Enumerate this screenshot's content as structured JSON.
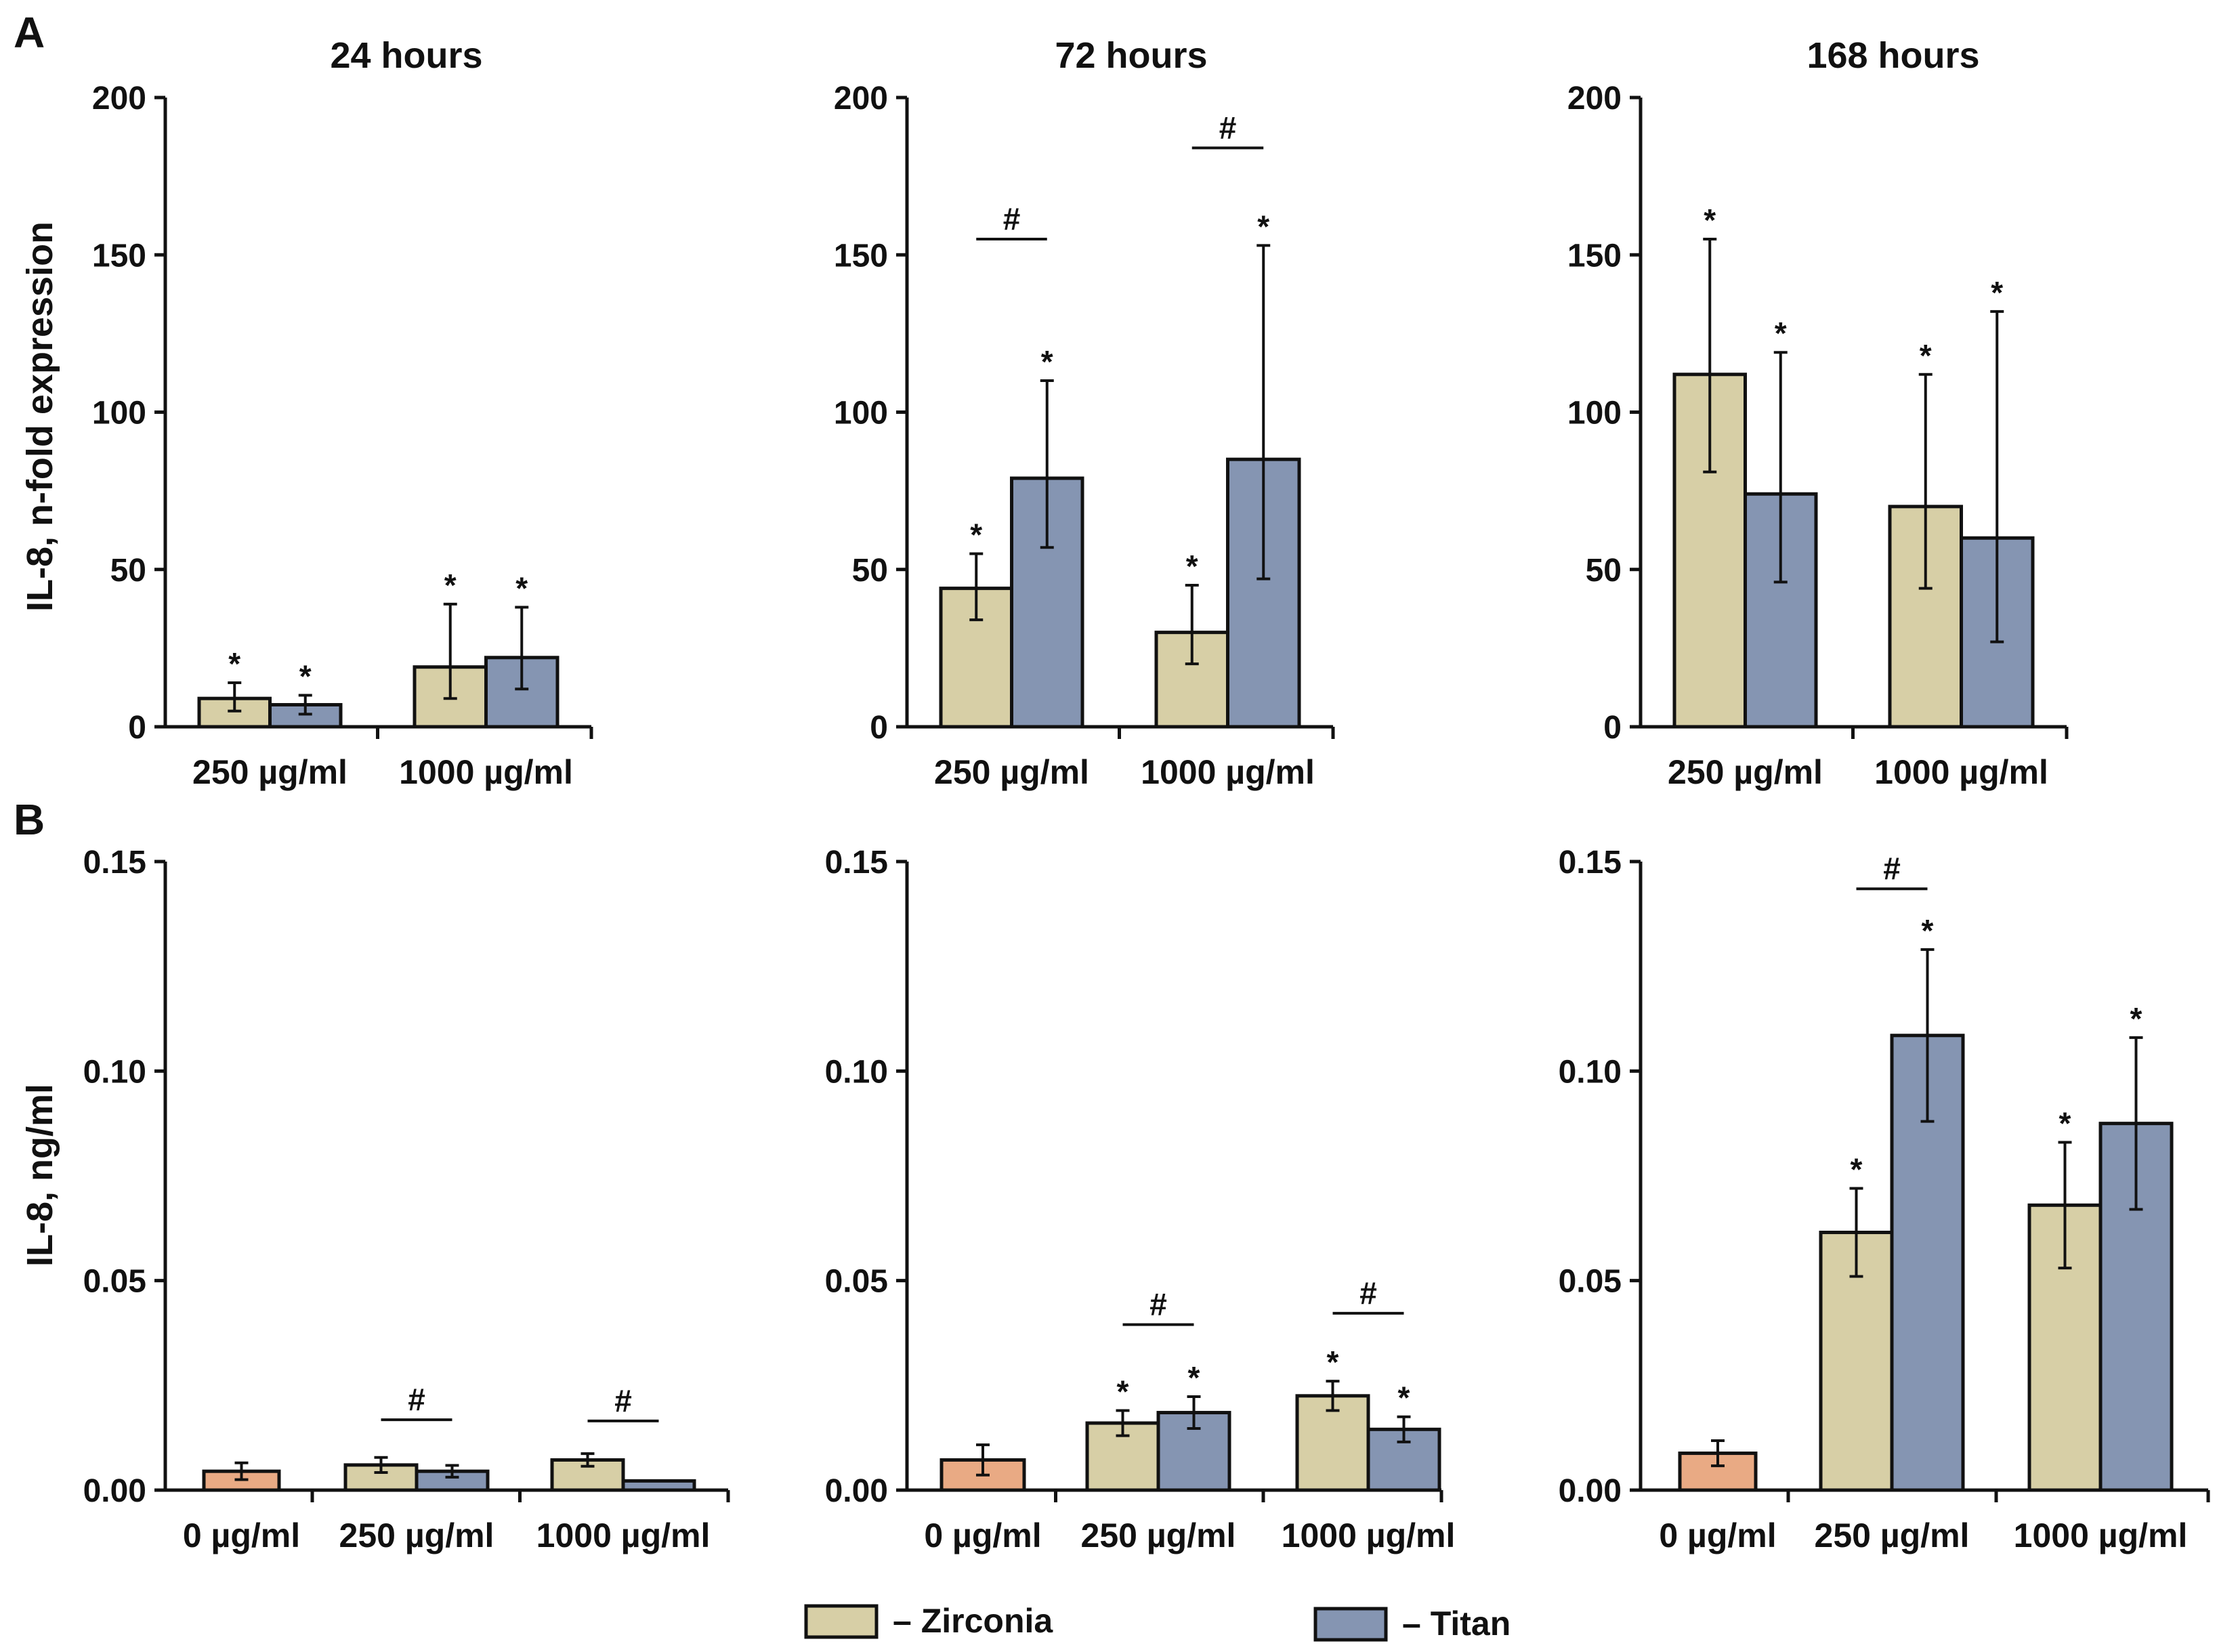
{
  "panels": {
    "a": "A",
    "b": "B"
  },
  "legend": {
    "zircon": "– Zirconia",
    "titan": "– Titan"
  },
  "colors": {
    "zirconia": "#d7cfa6",
    "titan": "#8595b2",
    "control": "#e9aa84",
    "stroke": "#111111"
  },
  "chart_data": [
    {
      "type": "bar",
      "row": "A",
      "title": "24 hours",
      "ylabel": "IL-8, n-fold expression",
      "ylim": [
        0,
        200
      ],
      "yticks": [
        0,
        50,
        100,
        150,
        200
      ],
      "ytick_labels": [
        "0",
        "50",
        "100",
        "150",
        "200"
      ],
      "categories": [
        "250 µg/ml",
        "1000 µg/ml"
      ],
      "series": [
        {
          "name": "Zirconia",
          "values": [
            9,
            19
          ],
          "err_low": [
            4,
            10
          ],
          "err_high": [
            5,
            20
          ],
          "marks": [
            "*",
            "*"
          ]
        },
        {
          "name": "Titan",
          "values": [
            7,
            22
          ],
          "err_low": [
            3,
            10
          ],
          "err_high": [
            3,
            16
          ],
          "marks": [
            "*",
            "*"
          ]
        }
      ],
      "brackets": []
    },
    {
      "type": "bar",
      "row": "A",
      "title": "72 hours",
      "ylabel": "",
      "ylim": [
        0,
        200
      ],
      "yticks": [
        0,
        50,
        100,
        150,
        200
      ],
      "ytick_labels": [
        "0",
        "50",
        "100",
        "150",
        "200"
      ],
      "categories": [
        "250 µg/ml",
        "1000 µg/ml"
      ],
      "series": [
        {
          "name": "Zirconia",
          "values": [
            44,
            30
          ],
          "err_low": [
            10,
            10
          ],
          "err_high": [
            11,
            15
          ],
          "marks": [
            "*",
            "*"
          ]
        },
        {
          "name": "Titan",
          "values": [
            79,
            85
          ],
          "err_low": [
            22,
            38
          ],
          "err_high": [
            31,
            68
          ],
          "marks": [
            "*",
            "*"
          ]
        }
      ],
      "brackets": [
        {
          "category": 0,
          "y": 155,
          "label": "#"
        },
        {
          "category": 1,
          "y": 184,
          "label": "#"
        }
      ]
    },
    {
      "type": "bar",
      "row": "A",
      "title": "168 hours",
      "ylabel": "",
      "ylim": [
        0,
        200
      ],
      "yticks": [
        0,
        50,
        100,
        150,
        200
      ],
      "ytick_labels": [
        "0",
        "50",
        "100",
        "150",
        "200"
      ],
      "categories": [
        "250 µg/ml",
        "1000 µg/ml"
      ],
      "series": [
        {
          "name": "Zirconia",
          "values": [
            112,
            70
          ],
          "err_low": [
            31,
            26
          ],
          "err_high": [
            43,
            42
          ],
          "marks": [
            "*",
            "*"
          ]
        },
        {
          "name": "Titan",
          "values": [
            74,
            60
          ],
          "err_low": [
            28,
            33
          ],
          "err_high": [
            45,
            72
          ],
          "marks": [
            "*",
            "*"
          ]
        }
      ],
      "brackets": []
    },
    {
      "type": "bar",
      "row": "B",
      "title": "",
      "ylabel": "IL-8, ng/ml",
      "ylim": [
        0,
        0.15
      ],
      "yticks": [
        0,
        0.05,
        0.1,
        0.15
      ],
      "ytick_labels": [
        "0.00",
        "0.05",
        "0.10",
        "0.15"
      ],
      "categories": [
        "0 µg/ml",
        "250 µg/ml",
        "1000 µg/ml"
      ],
      "control": {
        "value": 0.0045,
        "err_low": 0.002,
        "err_high": 0.002
      },
      "series": [
        {
          "name": "Zirconia",
          "values": [
            null,
            0.006,
            0.0072
          ],
          "err_low": [
            null,
            0.0018,
            0.0015
          ],
          "err_high": [
            null,
            0.0018,
            0.0015
          ],
          "marks": [
            "",
            "",
            ""
          ]
        },
        {
          "name": "Titan",
          "values": [
            null,
            0.0045,
            0.0022
          ],
          "err_low": [
            null,
            0.0014,
            0
          ],
          "err_high": [
            null,
            0.0014,
            0
          ],
          "marks": [
            "",
            "",
            ""
          ]
        }
      ],
      "brackets": [
        {
          "category": 1,
          "y": 0.0168,
          "label": "#"
        },
        {
          "category": 2,
          "y": 0.0165,
          "label": "#"
        }
      ]
    },
    {
      "type": "bar",
      "row": "B",
      "title": "",
      "ylabel": "",
      "ylim": [
        0,
        0.15
      ],
      "yticks": [
        0,
        0.05,
        0.1,
        0.15
      ],
      "ytick_labels": [
        "0.00",
        "0.05",
        "0.10",
        "0.15"
      ],
      "categories": [
        "0 µg/ml",
        "250 µg/ml",
        "1000 µg/ml"
      ],
      "control": {
        "value": 0.0072,
        "err_low": 0.0036,
        "err_high": 0.0036
      },
      "series": [
        {
          "name": "Zirconia",
          "values": [
            null,
            0.016,
            0.0225
          ],
          "err_low": [
            null,
            0.003,
            0.0035
          ],
          "err_high": [
            null,
            0.003,
            0.0035
          ],
          "marks": [
            "",
            "*",
            "*"
          ]
        },
        {
          "name": "Titan",
          "values": [
            null,
            0.0185,
            0.0145
          ],
          "err_low": [
            null,
            0.0038,
            0.003
          ],
          "err_high": [
            null,
            0.0038,
            0.003
          ],
          "marks": [
            "",
            "*",
            "*"
          ]
        }
      ],
      "brackets": [
        {
          "category": 1,
          "y": 0.0395,
          "label": "#"
        },
        {
          "category": 2,
          "y": 0.0422,
          "label": "#"
        }
      ]
    },
    {
      "type": "bar",
      "row": "B",
      "title": "",
      "ylabel": "",
      "ylim": [
        0,
        0.15
      ],
      "yticks": [
        0,
        0.05,
        0.1,
        0.15
      ],
      "ytick_labels": [
        "0.00",
        "0.05",
        "0.10",
        "0.15"
      ],
      "categories": [
        "0 µg/ml",
        "250 µg/ml",
        "1000 µg/ml"
      ],
      "control": {
        "value": 0.0088,
        "err_low": 0.003,
        "err_high": 0.003
      },
      "series": [
        {
          "name": "Zirconia",
          "values": [
            null,
            0.0615,
            0.068
          ],
          "err_low": [
            null,
            0.0105,
            0.015
          ],
          "err_high": [
            null,
            0.0105,
            0.015
          ],
          "marks": [
            "",
            "*",
            "*"
          ]
        },
        {
          "name": "Titan",
          "values": [
            null,
            0.1085,
            0.0875
          ],
          "err_low": [
            null,
            0.0205,
            0.0205
          ],
          "err_high": [
            null,
            0.0205,
            0.0205
          ],
          "marks": [
            "",
            "*",
            "*"
          ]
        }
      ],
      "brackets": [
        {
          "category": 1,
          "y": 0.1435,
          "label": "#"
        }
      ]
    }
  ]
}
